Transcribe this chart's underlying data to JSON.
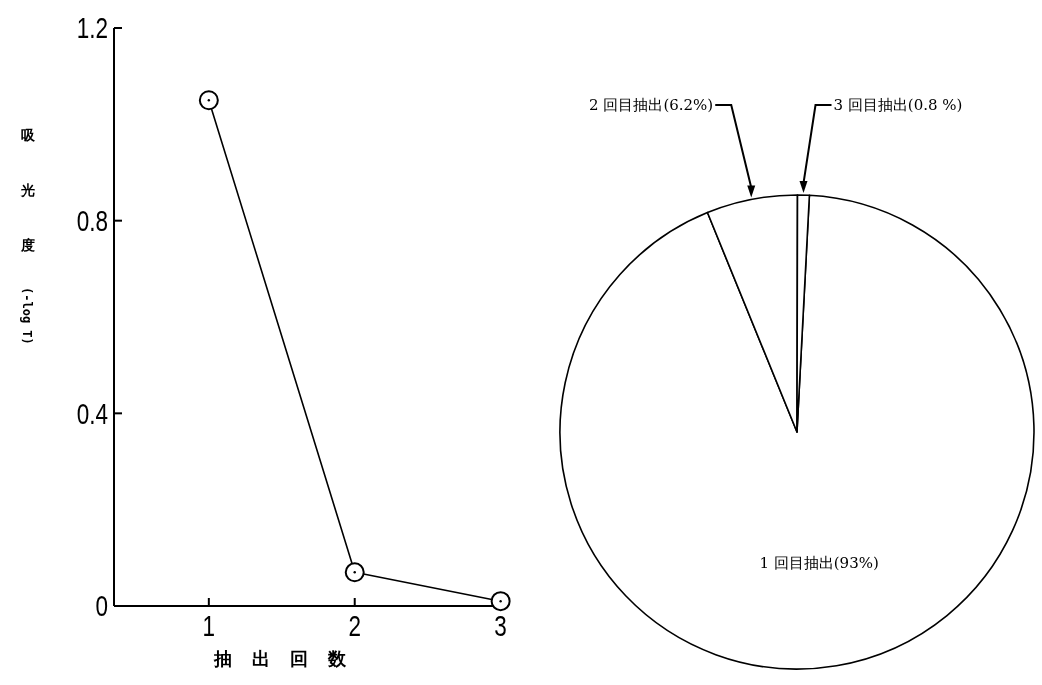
{
  "chart_data": [
    {
      "type": "line",
      "xlabel": "抽出回数",
      "ylabel": "吸光度(-log T)",
      "x": [
        1,
        2,
        3
      ],
      "series": [
        {
          "color": "#000000",
          "values": [
            1.05,
            0.07,
            0.01
          ]
        }
      ],
      "xlim": [
        0.35,
        3.03
      ],
      "xticks": [
        1,
        2,
        3
      ],
      "ylim": [
        0,
        1.2
      ],
      "yticks": [
        0,
        {
          "value": 0.4,
          "label": "0.4"
        },
        {
          "value": 0.8,
          "label": "0.8"
        },
        {
          "value": 1.2,
          "label": "1.2"
        }
      ],
      "marker": "circle",
      "line_style": "solid",
      "grid": false
    },
    {
      "type": "pie",
      "categories": [
        "1 回目抽出",
        "2 回目抽出",
        "3 回目抽出"
      ],
      "values": [
        93,
        6.2,
        0.8
      ],
      "value_labels": [
        "(93%)",
        "(6.2%)",
        "(0.8 %)"
      ],
      "colors": [
        "#ffffff",
        "#ffffff",
        "#ffffff"
      ]
    }
  ]
}
